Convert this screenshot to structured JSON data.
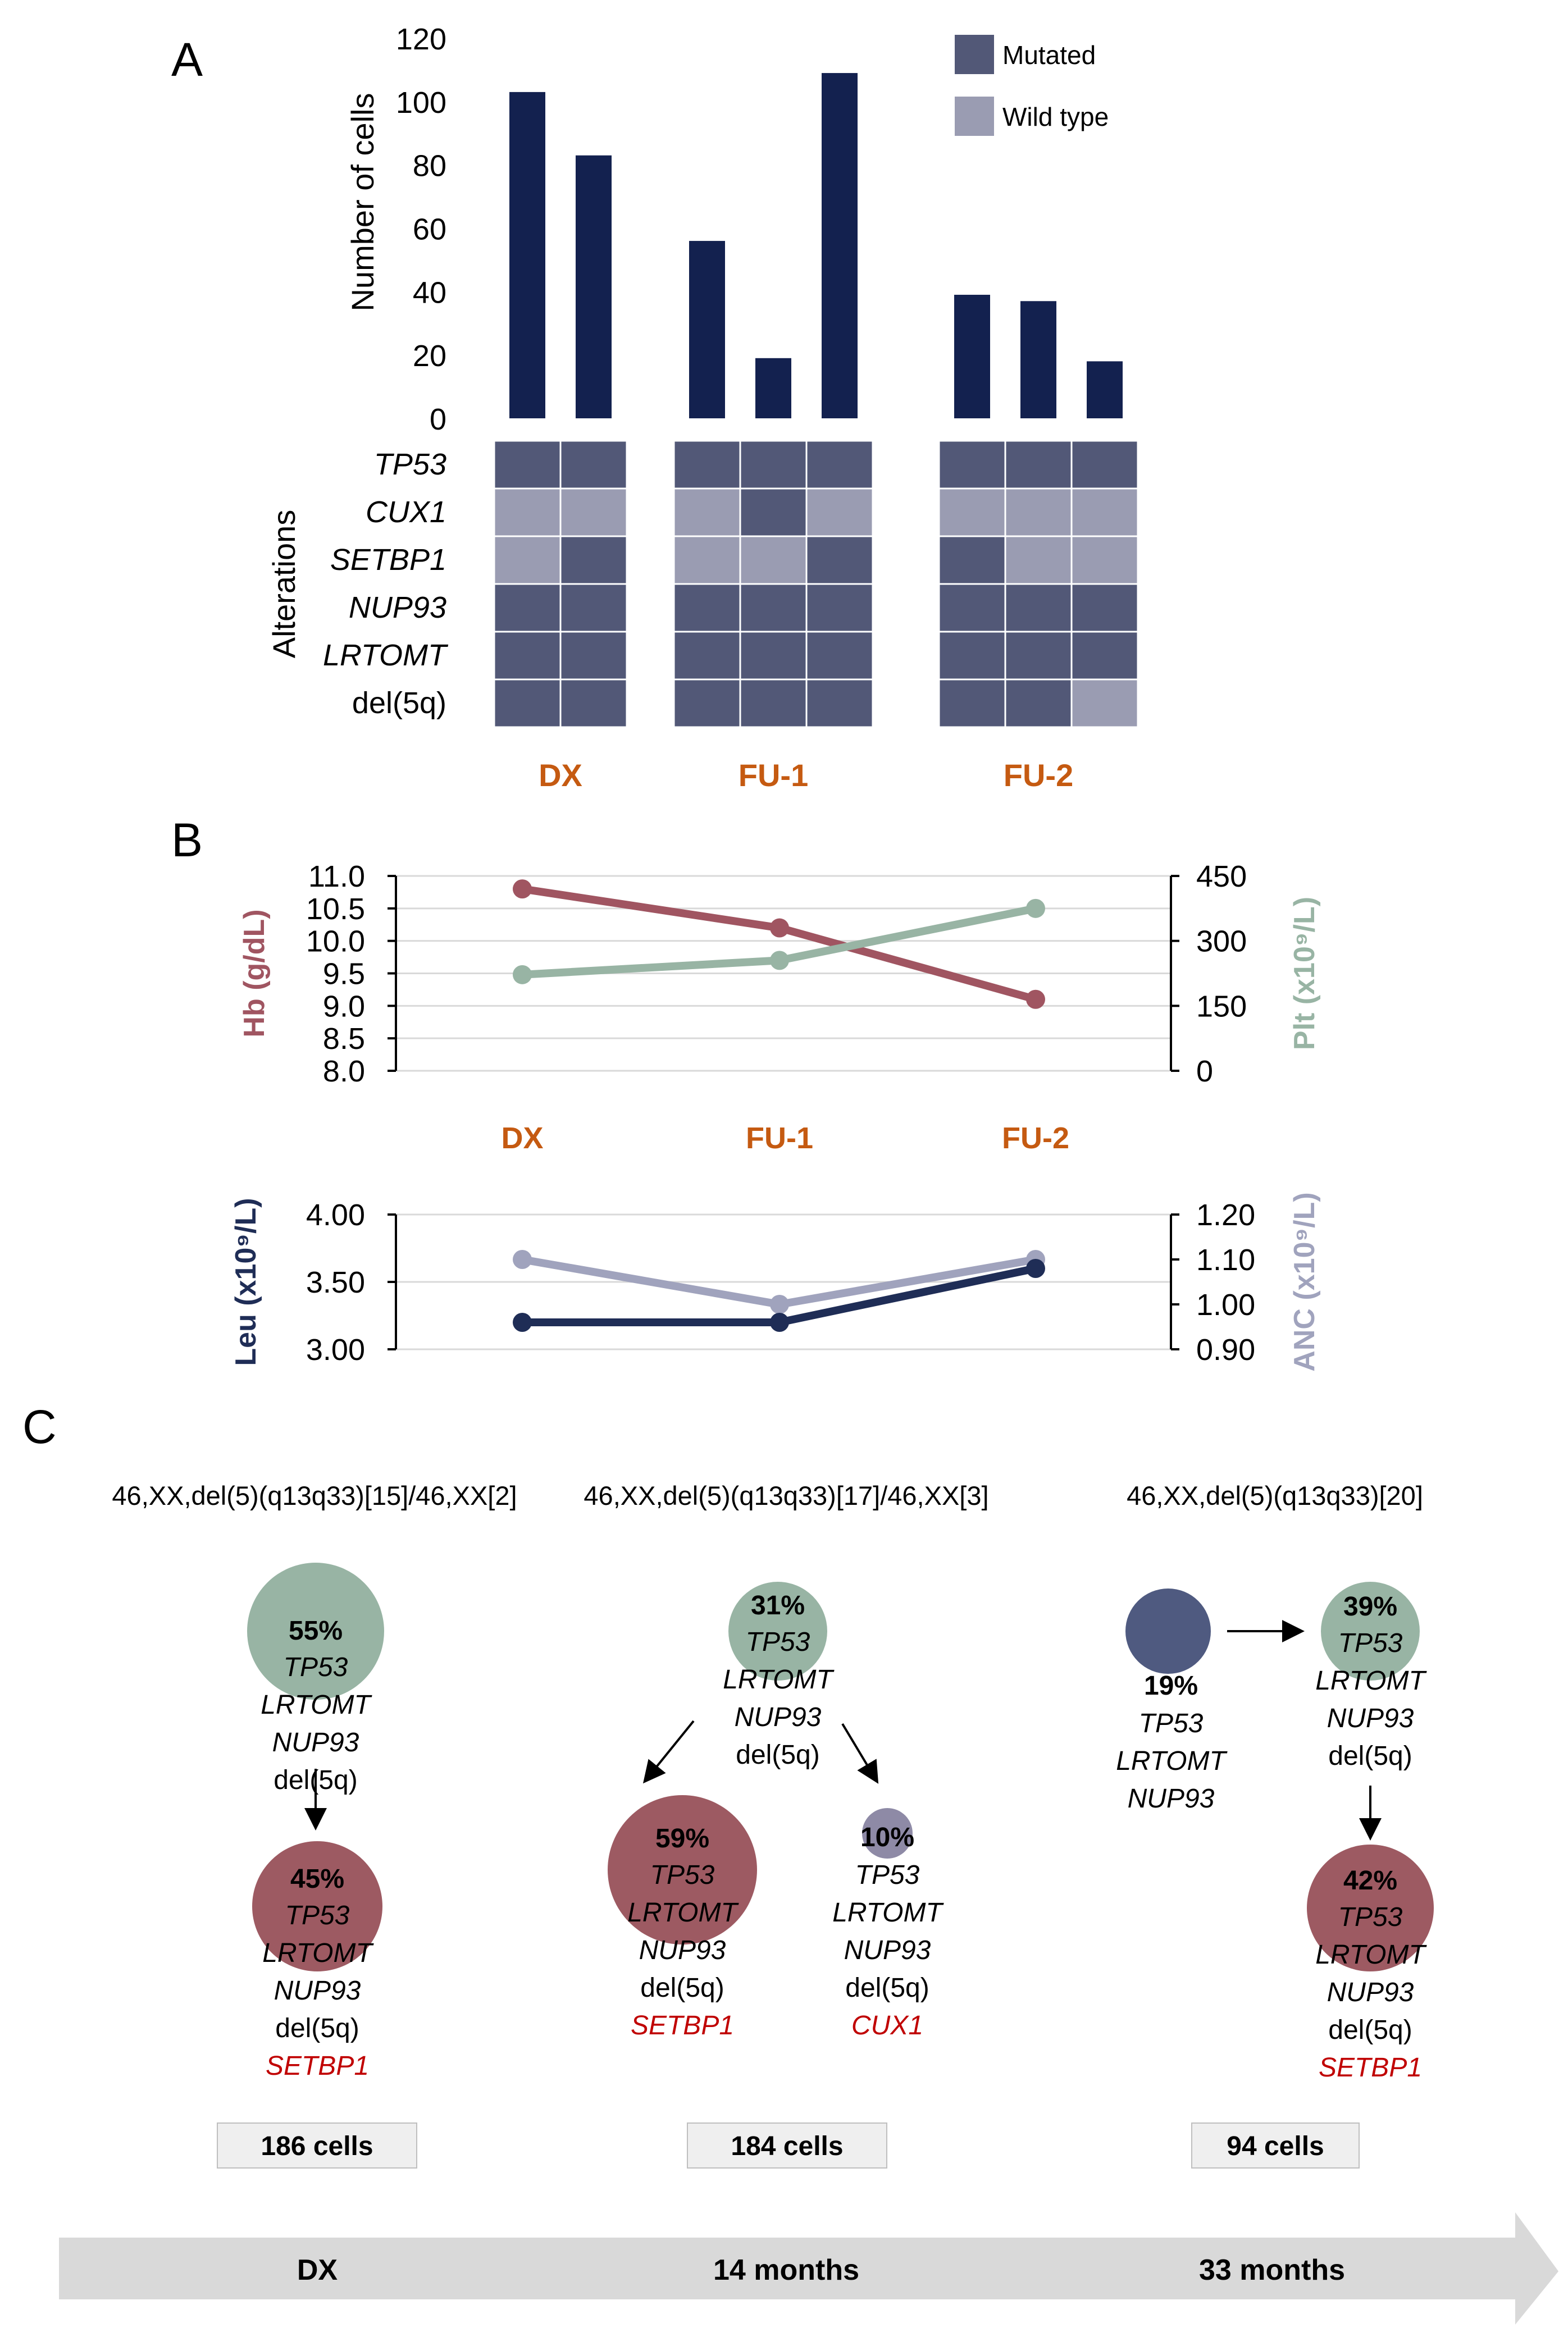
{
  "panels": {
    "a": "A",
    "b": "B",
    "c": "C"
  },
  "colors": {
    "bar": "#13214f",
    "mutated": "#525877",
    "wild_type": "#9a9cb2",
    "timepoint": "#c55a11",
    "hb": "#a05561",
    "plt": "#98b4a4",
    "leu": "#1f2d56",
    "anc": "#a0a3bd",
    "clone_green": "#98b4a4",
    "clone_red": "#9d5a62",
    "clone_navy": "#4f5a80",
    "clone_purple": "#8e8aa6",
    "new_mutation": "#c00000",
    "box": "#efefef",
    "arrow": "#d9d9d9"
  },
  "chart_data": [
    {
      "type": "bar",
      "ylabel": "Number of cells",
      "ylim": [
        0,
        120
      ],
      "yticks": [
        0,
        20,
        40,
        60,
        80,
        100,
        120
      ],
      "groups": [
        {
          "name": "DX",
          "values": [
            103,
            83
          ]
        },
        {
          "name": "FU-1",
          "values": [
            56,
            19,
            109
          ]
        },
        {
          "name": "FU-2",
          "values": [
            39,
            37,
            18
          ]
        }
      ],
      "legend": [
        {
          "key": "mutated",
          "label": "Mutated"
        },
        {
          "key": "wild_type",
          "label": "Wild type"
        }
      ],
      "legend_position": "top-right"
    },
    {
      "type": "heatmap",
      "ylabel": "Alterations",
      "rows": [
        "TP53",
        "CUX1",
        "SETBP1",
        "NUP93",
        "LRTOMT",
        "del(5q)"
      ],
      "italic_rows": [
        true,
        true,
        true,
        true,
        true,
        false
      ],
      "groups": [
        "DX",
        "FU-1",
        "FU-2"
      ],
      "matrix": [
        [
          [
            "M",
            "M"
          ],
          [
            "M",
            "M",
            "M"
          ],
          [
            "M",
            "M",
            "M"
          ]
        ],
        [
          [
            "W",
            "W"
          ],
          [
            "W",
            "M",
            "W"
          ],
          [
            "W",
            "W",
            "W"
          ]
        ],
        [
          [
            "W",
            "M"
          ],
          [
            "W",
            "W",
            "M"
          ],
          [
            "M",
            "W",
            "W"
          ]
        ],
        [
          [
            "M",
            "M"
          ],
          [
            "M",
            "M",
            "M"
          ],
          [
            "M",
            "M",
            "M"
          ]
        ],
        [
          [
            "M",
            "M"
          ],
          [
            "M",
            "M",
            "M"
          ],
          [
            "M",
            "M",
            "M"
          ]
        ],
        [
          [
            "M",
            "M"
          ],
          [
            "M",
            "M",
            "M"
          ],
          [
            "M",
            "M",
            "W"
          ]
        ]
      ]
    },
    {
      "type": "line",
      "categories": [
        "DX",
        "FU-1",
        "FU-2"
      ],
      "series": [
        {
          "name": "Hb",
          "axis": "left",
          "values": [
            10.8,
            10.2,
            9.1
          ]
        },
        {
          "name": "Plt",
          "axis": "right",
          "values": [
            222,
            255,
            375
          ]
        }
      ],
      "ylabel_left": "Hb (g/dL)",
      "ylabel_right": "Plt (x10⁹/L)",
      "ylim_left": [
        8.0,
        11.0
      ],
      "ylim_right": [
        0,
        450
      ],
      "yticks_left": [
        "8.0",
        "8.5",
        "9.0",
        "9.5",
        "10.0",
        "10.5",
        "11.0"
      ],
      "yticks_right": [
        "0",
        "150",
        "300",
        "450"
      ],
      "grid": true
    },
    {
      "type": "line",
      "categories": [
        "DX",
        "FU-1",
        "FU-2"
      ],
      "series": [
        {
          "name": "Leu",
          "axis": "left",
          "values": [
            3.2,
            3.2,
            3.6
          ]
        },
        {
          "name": "ANC",
          "axis": "right",
          "values": [
            1.1,
            1.0,
            1.1
          ]
        }
      ],
      "ylabel_left": "Leu (x10⁹/L)",
      "ylabel_right": "ANC (x10⁹/L)",
      "ylim_left": [
        3.0,
        4.0
      ],
      "ylim_right": [
        0.9,
        1.2
      ],
      "yticks_left": [
        "3.00",
        "3.50",
        "4.00"
      ],
      "yticks_right": [
        "0.90",
        "1.00",
        "1.10",
        "1.20"
      ],
      "grid": true
    }
  ],
  "clonal": {
    "karyotypes": [
      "46,XX,del(5)(q13q33)[15]/46,XX[2]",
      "46,XX,del(5)(q13q33)[17]/46,XX[3]",
      "46,XX,del(5)(q13q33)[20]"
    ],
    "cell_counts": [
      "186 cells",
      "184 cells",
      "94 cells"
    ],
    "timeline": [
      "DX",
      "14 months",
      "33 months"
    ],
    "clones": [
      {
        "id": "dx-founder",
        "percent": "55%",
        "fraction": 0.55,
        "color": "clone_green",
        "lines": [
          {
            "t": "TP53",
            "i": true
          },
          {
            "t": "LRTOMT",
            "i": true
          },
          {
            "t": "NUP93",
            "i": true
          },
          {
            "t": "del(5q)",
            "i": false
          }
        ]
      },
      {
        "id": "dx-sub",
        "percent": "45%",
        "fraction": 0.45,
        "color": "clone_red",
        "lines": [
          {
            "t": "TP53",
            "i": true
          },
          {
            "t": "LRTOMT",
            "i": true
          },
          {
            "t": "NUP93",
            "i": true
          },
          {
            "t": "del(5q)",
            "i": false
          },
          {
            "t": "SETBP1",
            "i": true,
            "red": true
          }
        ]
      },
      {
        "id": "fu1-founder",
        "percent": "31%",
        "fraction": 0.31,
        "color": "clone_green",
        "lines": [
          {
            "t": "TP53",
            "i": true
          },
          {
            "t": "LRTOMT",
            "i": true
          },
          {
            "t": "NUP93",
            "i": true
          },
          {
            "t": "del(5q)",
            "i": false
          }
        ]
      },
      {
        "id": "fu1-setbp1",
        "percent": "59%",
        "fraction": 0.59,
        "color": "clone_red",
        "lines": [
          {
            "t": "TP53",
            "i": true
          },
          {
            "t": "LRTOMT",
            "i": true
          },
          {
            "t": "NUP93",
            "i": true
          },
          {
            "t": "del(5q)",
            "i": false
          },
          {
            "t": "SETBP1",
            "i": true,
            "red": true
          }
        ]
      },
      {
        "id": "fu1-cux1",
        "percent": "10%",
        "fraction": 0.1,
        "color": "clone_purple",
        "lines": [
          {
            "t": "TP53",
            "i": true
          },
          {
            "t": "LRTOMT",
            "i": true
          },
          {
            "t": "NUP93",
            "i": true
          },
          {
            "t": "del(5q)",
            "i": false
          },
          {
            "t": "CUX1",
            "i": true,
            "red": true
          }
        ]
      },
      {
        "id": "fu2-ancestral",
        "percent": "19%",
        "fraction": 0.19,
        "color": "clone_navy",
        "lines": [
          {
            "t": "TP53",
            "i": true
          },
          {
            "t": "LRTOMT",
            "i": true
          },
          {
            "t": "NUP93",
            "i": true
          }
        ]
      },
      {
        "id": "fu2-founder",
        "percent": "39%",
        "fraction": 0.39,
        "color": "clone_green",
        "lines": [
          {
            "t": "TP53",
            "i": true
          },
          {
            "t": "LRTOMT",
            "i": true
          },
          {
            "t": "NUP93",
            "i": true
          },
          {
            "t": "del(5q)",
            "i": false
          }
        ]
      },
      {
        "id": "fu2-setbp1",
        "percent": "42%",
        "fraction": 0.42,
        "color": "clone_red",
        "lines": [
          {
            "t": "TP53",
            "i": true
          },
          {
            "t": "LRTOMT",
            "i": true
          },
          {
            "t": "NUP93",
            "i": true
          },
          {
            "t": "del(5q)",
            "i": false
          },
          {
            "t": "SETBP1",
            "i": true,
            "red": true
          }
        ]
      }
    ]
  }
}
